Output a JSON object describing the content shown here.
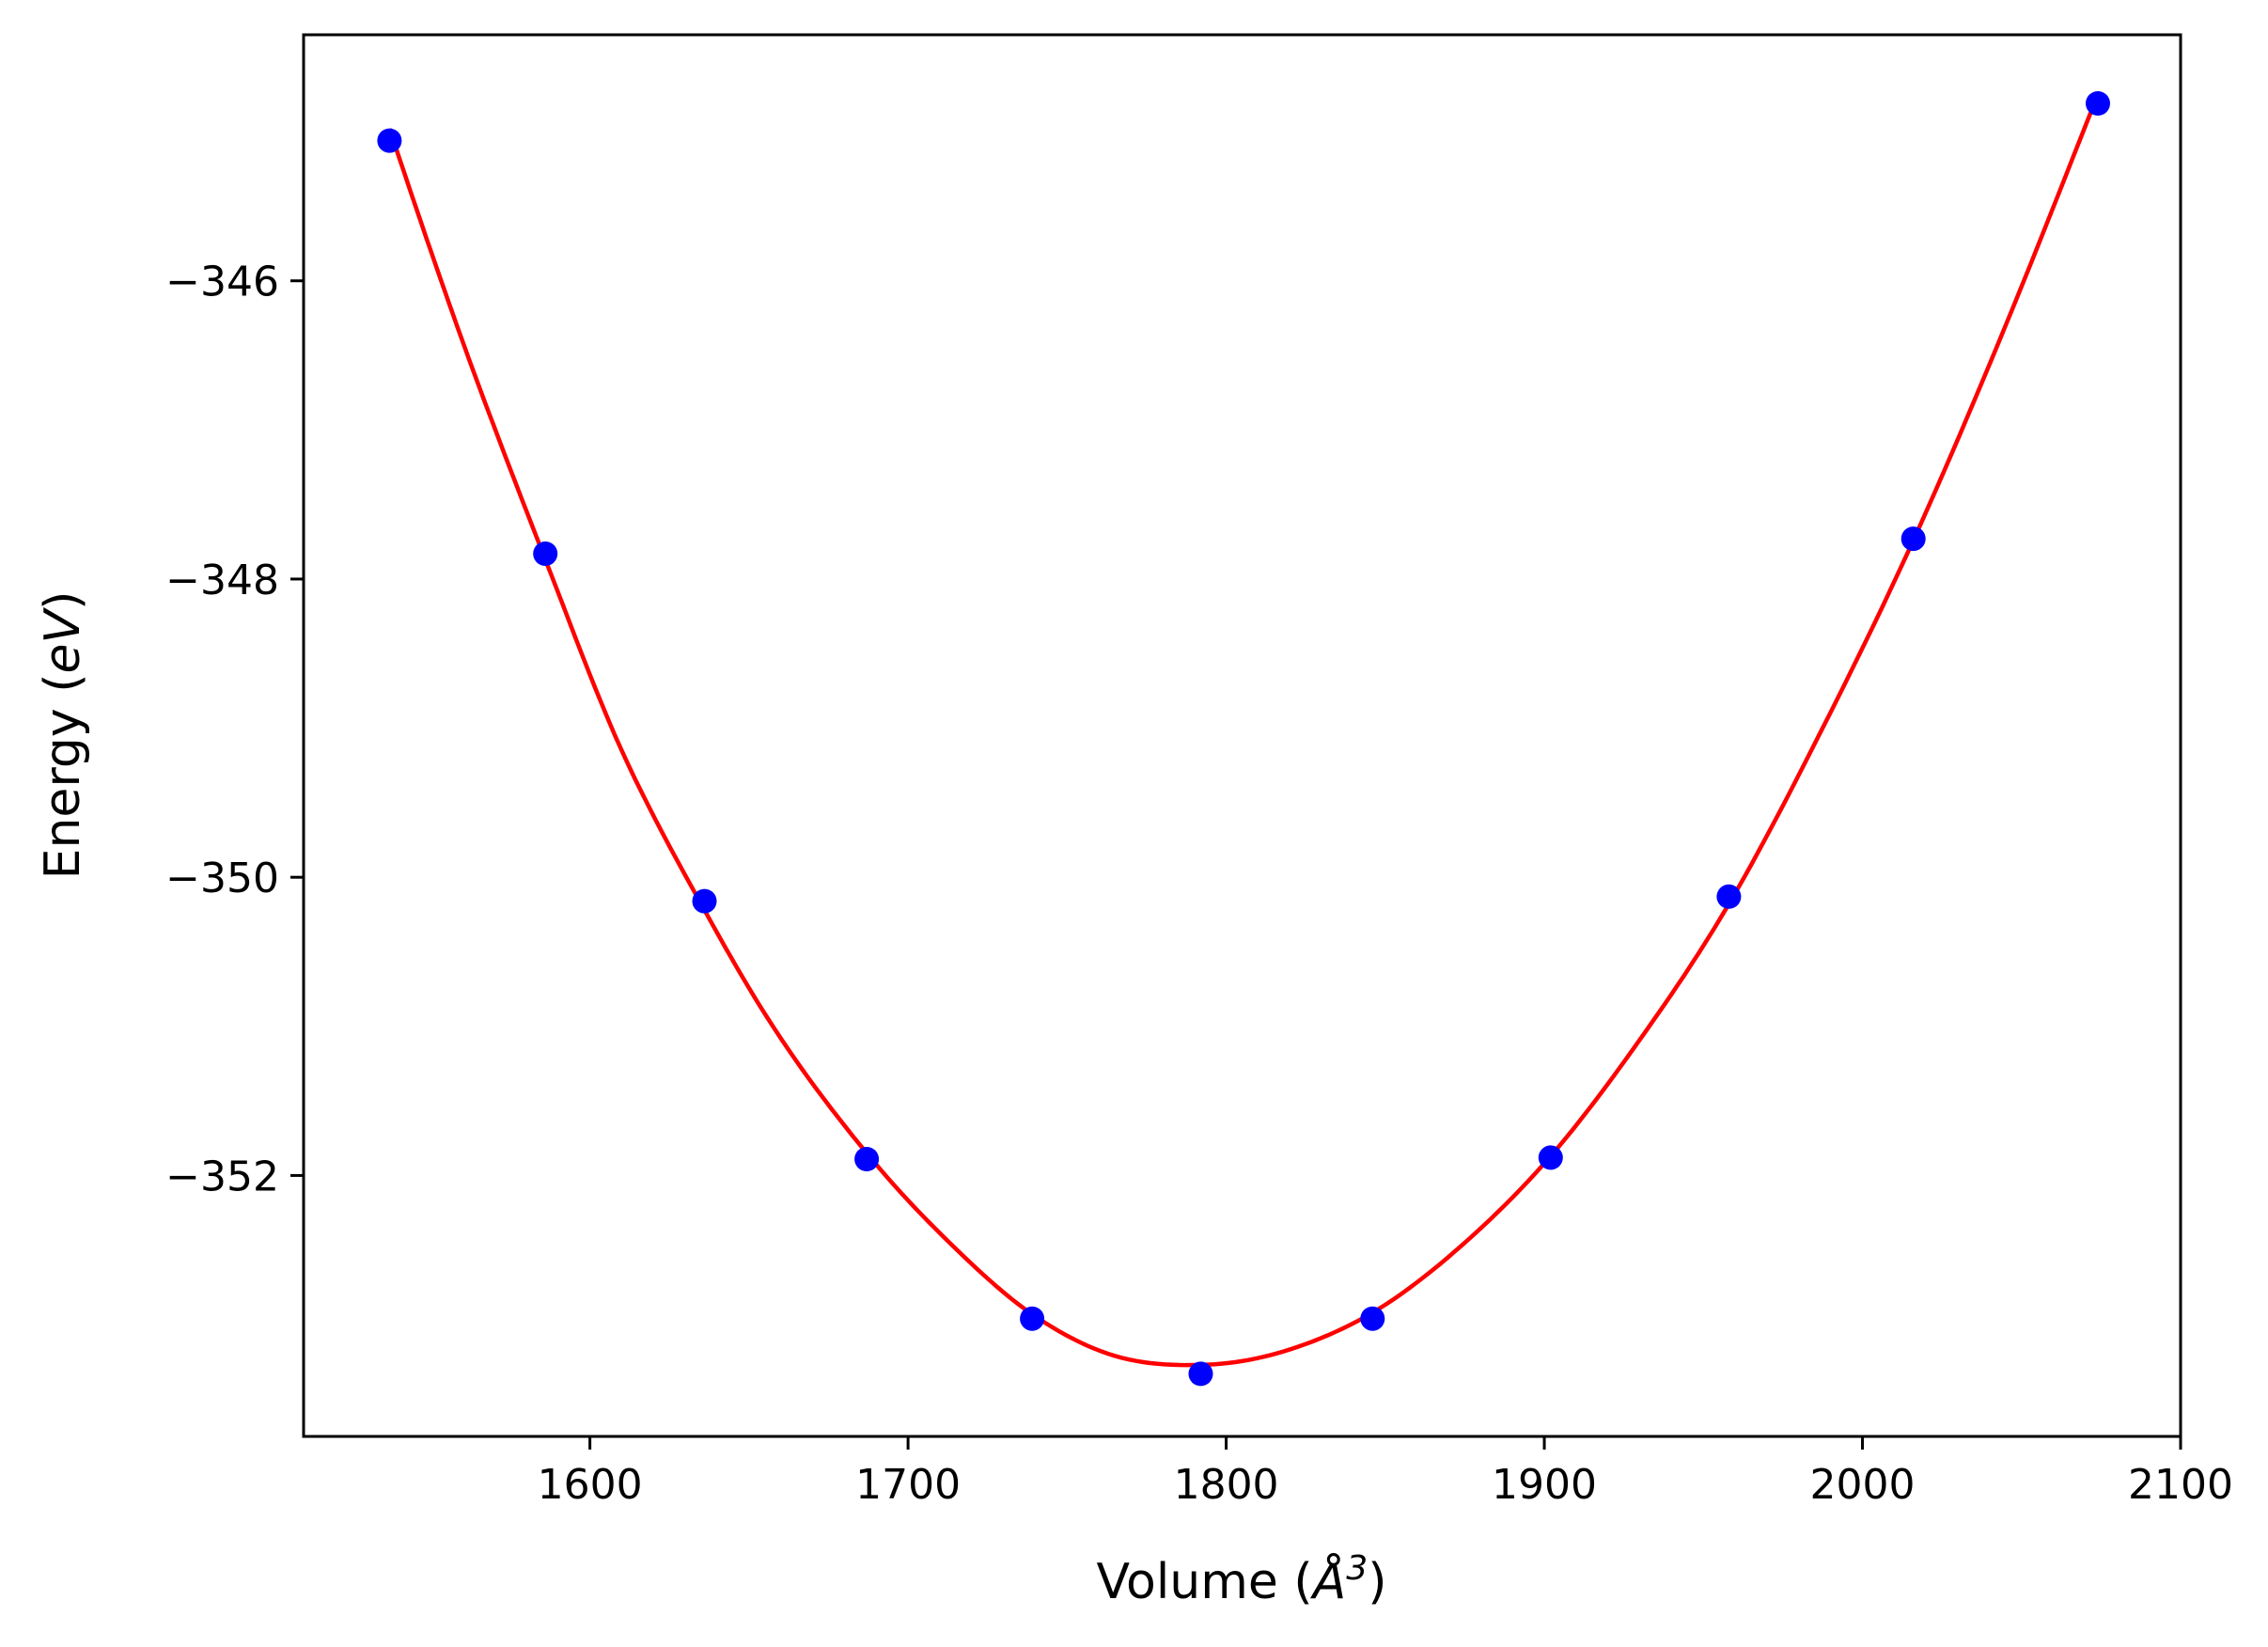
{
  "chart_data": {
    "type": "scatter",
    "xlabel_main": "Volume (",
    "xlabel_symbol": "Å",
    "xlabel_exp": "3",
    "xlabel_close": ")",
    "ylabel_main": "Energy (",
    "ylabel_unit": "eV",
    "ylabel_close": ")",
    "xlim": [
      1510,
      2100
    ],
    "ylim": [
      -353.75,
      -344.35
    ],
    "xticks": [
      1600,
      1700,
      1800,
      1900,
      2000,
      2100
    ],
    "xtick_labels": [
      "1600",
      "1700",
      "1800",
      "1900",
      "2000",
      "2100"
    ],
    "yticks": [
      -346,
      -348,
      -350,
      -352
    ],
    "ytick_labels": [
      "−346",
      "−348",
      "−350",
      "−352"
    ],
    "grid": false,
    "legend": "none",
    "series": [
      {
        "kind": "points",
        "color": "#0000ff",
        "x": [
          1537,
          1586,
          1636,
          1687,
          1739,
          1792,
          1846,
          1902,
          1958,
          2016,
          2074
        ],
        "y": [
          -345.06,
          -347.83,
          -350.16,
          -351.89,
          -352.96,
          -353.33,
          -352.96,
          -351.88,
          -350.13,
          -347.73,
          -344.81
        ]
      },
      {
        "kind": "fit-curve",
        "color": "#ff0000",
        "x": [
          1537,
          1550,
          1565,
          1586,
          1610,
          1636,
          1660,
          1687,
          1713,
          1739,
          1765,
          1792,
          1818,
          1846,
          1874,
          1902,
          1930,
          1958,
          1987,
          2016,
          2045,
          2074
        ],
        "y": [
          -344.98,
          -345.8,
          -346.7,
          -347.87,
          -349.15,
          -350.22,
          -351.08,
          -351.85,
          -352.45,
          -352.93,
          -353.21,
          -353.27,
          -353.18,
          -352.92,
          -352.47,
          -351.87,
          -351.09,
          -350.18,
          -349.02,
          -347.74,
          -346.3,
          -344.75
        ]
      }
    ]
  }
}
